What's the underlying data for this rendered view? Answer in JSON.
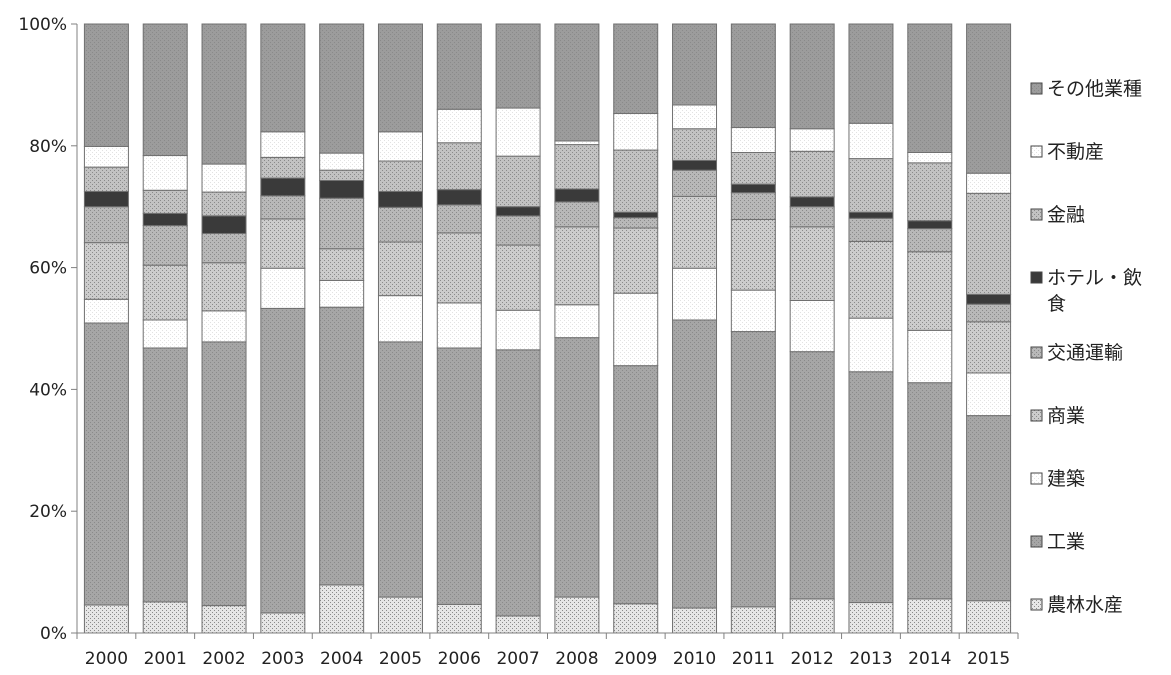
{
  "chart_data": {
    "type": "bar",
    "stacked": true,
    "percent": true,
    "categories": [
      "2000",
      "2001",
      "2002",
      "2003",
      "2004",
      "2005",
      "2006",
      "2007",
      "2008",
      "2009",
      "2010",
      "2011",
      "2012",
      "2013",
      "2014",
      "2015"
    ],
    "ylim": [
      0,
      100
    ],
    "yticks": [
      "0%",
      "20%",
      "40%",
      "60%",
      "80%",
      "100%"
    ],
    "grid": false,
    "legend_position": "right",
    "series": [
      {
        "name": "農林水産",
        "values": [
          4.6,
          5.1,
          4.5,
          3.3,
          7.9,
          5.9,
          4.7,
          2.8,
          5.9,
          4.8,
          4.1,
          4.3,
          5.6,
          5.0,
          5.6,
          5.3
        ]
      },
      {
        "name": "工業",
        "values": [
          46.3,
          41.7,
          43.3,
          50.0,
          45.6,
          41.9,
          42.1,
          43.7,
          42.6,
          39.1,
          47.3,
          45.2,
          40.6,
          37.9,
          35.5,
          30.4
        ]
      },
      {
        "name": "建築",
        "values": [
          3.9,
          4.6,
          5.1,
          6.6,
          4.4,
          7.6,
          7.4,
          6.5,
          5.4,
          11.9,
          8.5,
          6.8,
          8.4,
          8.8,
          8.6,
          7.0
        ]
      },
      {
        "name": "商業",
        "values": [
          9.3,
          9.0,
          7.9,
          8.1,
          5.2,
          8.8,
          11.5,
          10.7,
          12.8,
          10.7,
          11.8,
          11.6,
          12.1,
          12.6,
          12.9,
          8.4
        ]
      },
      {
        "name": "交通運輸",
        "values": [
          5.9,
          6.5,
          4.8,
          3.8,
          8.3,
          5.7,
          4.6,
          4.8,
          4.1,
          1.7,
          4.3,
          4.4,
          3.3,
          3.8,
          3.8,
          2.9
        ]
      },
      {
        "name": "ホテル・飲食",
        "values": [
          2.5,
          2.0,
          2.9,
          2.9,
          2.9,
          2.6,
          2.5,
          1.5,
          2.1,
          0.9,
          1.6,
          1.4,
          1.6,
          1.0,
          1.3,
          1.6
        ]
      },
      {
        "name": "金融",
        "values": [
          4.0,
          3.8,
          3.9,
          3.4,
          1.7,
          5.0,
          7.7,
          8.3,
          7.3,
          10.2,
          5.2,
          5.2,
          7.5,
          8.8,
          9.5,
          16.6
        ]
      },
      {
        "name": "不動産",
        "values": [
          3.4,
          5.7,
          4.6,
          4.2,
          2.8,
          4.8,
          5.5,
          7.9,
          0.6,
          6.0,
          3.9,
          4.1,
          3.7,
          5.8,
          1.7,
          3.3
        ]
      },
      {
        "name": "その他業種",
        "values": [
          20.1,
          21.6,
          23.0,
          17.7,
          21.2,
          17.7,
          14.0,
          13.8,
          19.2,
          14.7,
          13.3,
          17.0,
          17.2,
          16.3,
          21.1,
          24.5
        ]
      }
    ]
  },
  "colors": {
    "series": [
      "#e6e6e6",
      "#a6a6a6",
      "#ffffff",
      "#cccccc",
      "#b8b8b8",
      "#3a3a3a",
      "#c2c2c2",
      "#ffffff",
      "#9c9c9c"
    ],
    "patterns": [
      "dots",
      "dots",
      "dots",
      "dots",
      "dots",
      "solid",
      "dots",
      "dots",
      "dots"
    ],
    "axis": "#808080",
    "outline": "#707070"
  }
}
